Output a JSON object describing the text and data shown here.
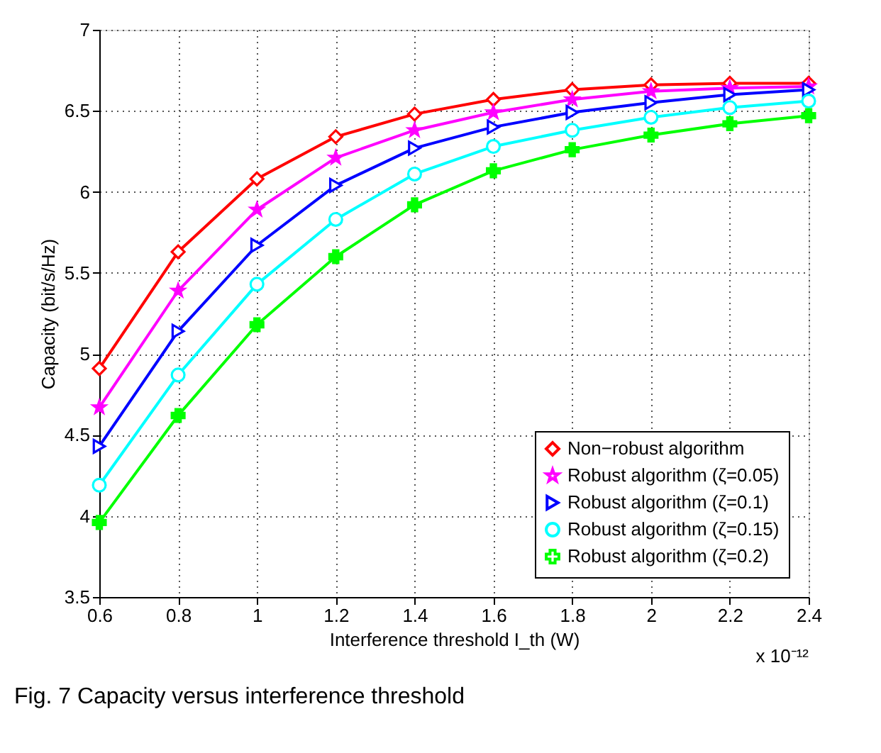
{
  "chart_data": {
    "type": "line",
    "xlabel": "Interference threshold I_th (W)",
    "ylabel": "Capacity (bit/s/Hz)",
    "x": [
      0.6,
      0.8,
      1,
      1.2,
      1.4,
      1.6,
      1.8,
      2,
      2.2,
      2.4
    ],
    "series": [
      {
        "name": "Non−robust algorithm",
        "color": "#ff0000",
        "marker": "diamond",
        "values": [
          4.91,
          5.63,
          6.08,
          6.34,
          6.48,
          6.57,
          6.63,
          6.66,
          6.67,
          6.67
        ]
      },
      {
        "name": "Robust algorithm (ζ=0.05)",
        "color": "#ff00ff",
        "marker": "star",
        "values": [
          4.67,
          5.39,
          5.89,
          6.21,
          6.38,
          6.49,
          6.57,
          6.62,
          6.64,
          6.65
        ]
      },
      {
        "name": "Robust algorithm (ζ=0.1)",
        "color": "#0000ff",
        "marker": "triangle",
        "values": [
          4.43,
          5.14,
          5.67,
          6.04,
          6.27,
          6.4,
          6.49,
          6.55,
          6.6,
          6.63
        ]
      },
      {
        "name": "Robust algorithm (ζ=0.15)",
        "color": "#00ffff",
        "marker": "circle",
        "values": [
          4.19,
          4.87,
          5.43,
          5.83,
          6.11,
          6.28,
          6.38,
          6.46,
          6.52,
          6.56
        ]
      },
      {
        "name": "Robust algorithm (ζ=0.2)",
        "color": "#00ff00",
        "marker": "cross",
        "values": [
          3.96,
          4.62,
          5.18,
          5.6,
          5.92,
          6.13,
          6.26,
          6.35,
          6.42,
          6.47
        ]
      }
    ],
    "xlim": [
      0.6,
      2.4
    ],
    "xticks": [
      0.6,
      0.8,
      1,
      1.2,
      1.4,
      1.6,
      1.8,
      2,
      2.2,
      2.4
    ],
    "ylim": [
      3.5,
      7
    ],
    "yticks": [
      3.5,
      4,
      4.5,
      5,
      5.5,
      6,
      6.5,
      7
    ],
    "grid": true,
    "legend": "bottom right",
    "line_style": "solid",
    "annotations": [
      "x 10⁻¹²",
      "Fig. 7 Capacity versus interference threshold"
    ]
  }
}
